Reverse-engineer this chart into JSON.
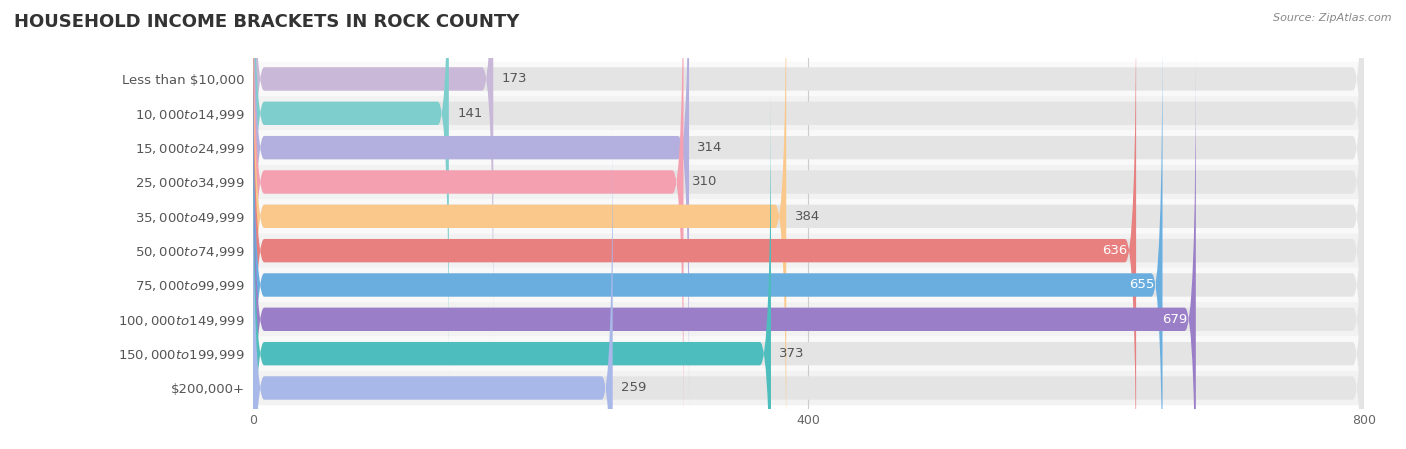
{
  "title": "HOUSEHOLD INCOME BRACKETS IN ROCK COUNTY",
  "source": "Source: ZipAtlas.com",
  "categories": [
    "Less than $10,000",
    "$10,000 to $14,999",
    "$15,000 to $24,999",
    "$25,000 to $34,999",
    "$35,000 to $49,999",
    "$50,000 to $74,999",
    "$75,000 to $99,999",
    "$100,000 to $149,999",
    "$150,000 to $199,999",
    "$200,000+"
  ],
  "values": [
    173,
    141,
    314,
    310,
    384,
    636,
    655,
    679,
    373,
    259
  ],
  "bar_colors": [
    "#c9b8d8",
    "#7ecece",
    "#b3b0e0",
    "#f4a0b0",
    "#f9c88a",
    "#e88080",
    "#6aaee0",
    "#9b7ec8",
    "#4dbdbd",
    "#a8b8e8"
  ],
  "label_colors": [
    "#666666",
    "#666666",
    "#666666",
    "#666666",
    "#666666",
    "#ffffff",
    "#ffffff",
    "#ffffff",
    "#666666",
    "#666666"
  ],
  "xlim": [
    0,
    800
  ],
  "xticks": [
    0,
    400,
    800
  ],
  "background_color": "#f7f7f7",
  "bar_background": "#e4e4e4",
  "row_bg_colors": [
    "#ffffff",
    "#f0f0f0"
  ],
  "title_fontsize": 13,
  "label_fontsize": 9.5,
  "value_fontsize": 9.5
}
